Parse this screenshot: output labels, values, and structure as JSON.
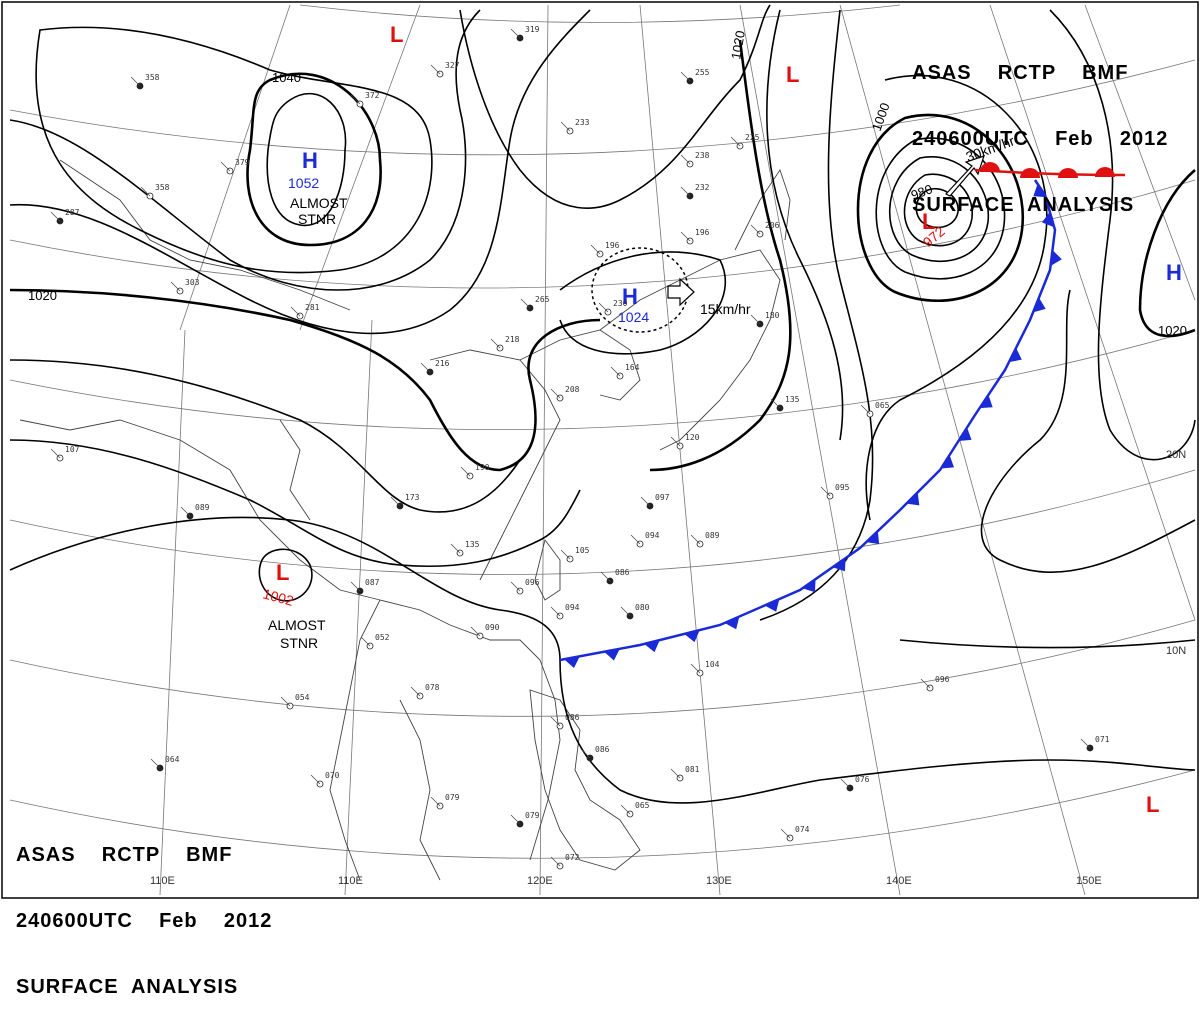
{
  "header": {
    "line1": "ASAS    RCTP    BMF",
    "line2": "240600UTC    Feb    2012",
    "line3": "SURFACE  ANALYSIS"
  },
  "grid_labels": {
    "lon": [
      "110E",
      "120E",
      "130E",
      "140E",
      "150E"
    ],
    "lat": [
      "20N",
      "10N"
    ]
  },
  "isobar_labels": [
    "1040",
    "1020",
    "1020",
    "1000",
    "980",
    "1020"
  ],
  "systems": [
    {
      "type": "H",
      "value": "1052",
      "color": "#1a2ad6",
      "note1": "ALMOST",
      "note2": "STNR"
    },
    {
      "type": "H",
      "value": "1024",
      "color": "#1a2ad6",
      "motion": "15km/hr"
    },
    {
      "type": "L",
      "value": "972",
      "color": "#e01010",
      "motion": "30km/hr"
    },
    {
      "type": "L",
      "value": "1002",
      "color": "#e01010",
      "note1": "ALMOST",
      "note2": "STNR"
    },
    {
      "type": "L",
      "value": "",
      "color": "#e01010"
    },
    {
      "type": "L",
      "value": "",
      "color": "#e01010"
    },
    {
      "type": "L",
      "value": "",
      "color": "#e01010"
    },
    {
      "type": "H",
      "value": "",
      "color": "#1a2ad6"
    }
  ],
  "fronts": {
    "cold_color": "#1a2ad6",
    "warm_color": "#e01010"
  },
  "stations": [
    "319",
    "327",
    "372",
    "358",
    "379",
    "358",
    "287",
    "303",
    "281",
    "265",
    "230",
    "218",
    "216",
    "196",
    "233",
    "255",
    "225",
    "238",
    "232",
    "196",
    "206",
    "180",
    "164",
    "208",
    "135",
    "120",
    "190",
    "173",
    "135",
    "105",
    "097",
    "094",
    "089",
    "086",
    "096",
    "094",
    "080",
    "090",
    "052",
    "087",
    "078",
    "054",
    "064",
    "070",
    "079",
    "079",
    "072",
    "086",
    "086",
    "065",
    "081",
    "076",
    "074",
    "096",
    "071",
    "104",
    "107",
    "089",
    "065",
    "095"
  ]
}
